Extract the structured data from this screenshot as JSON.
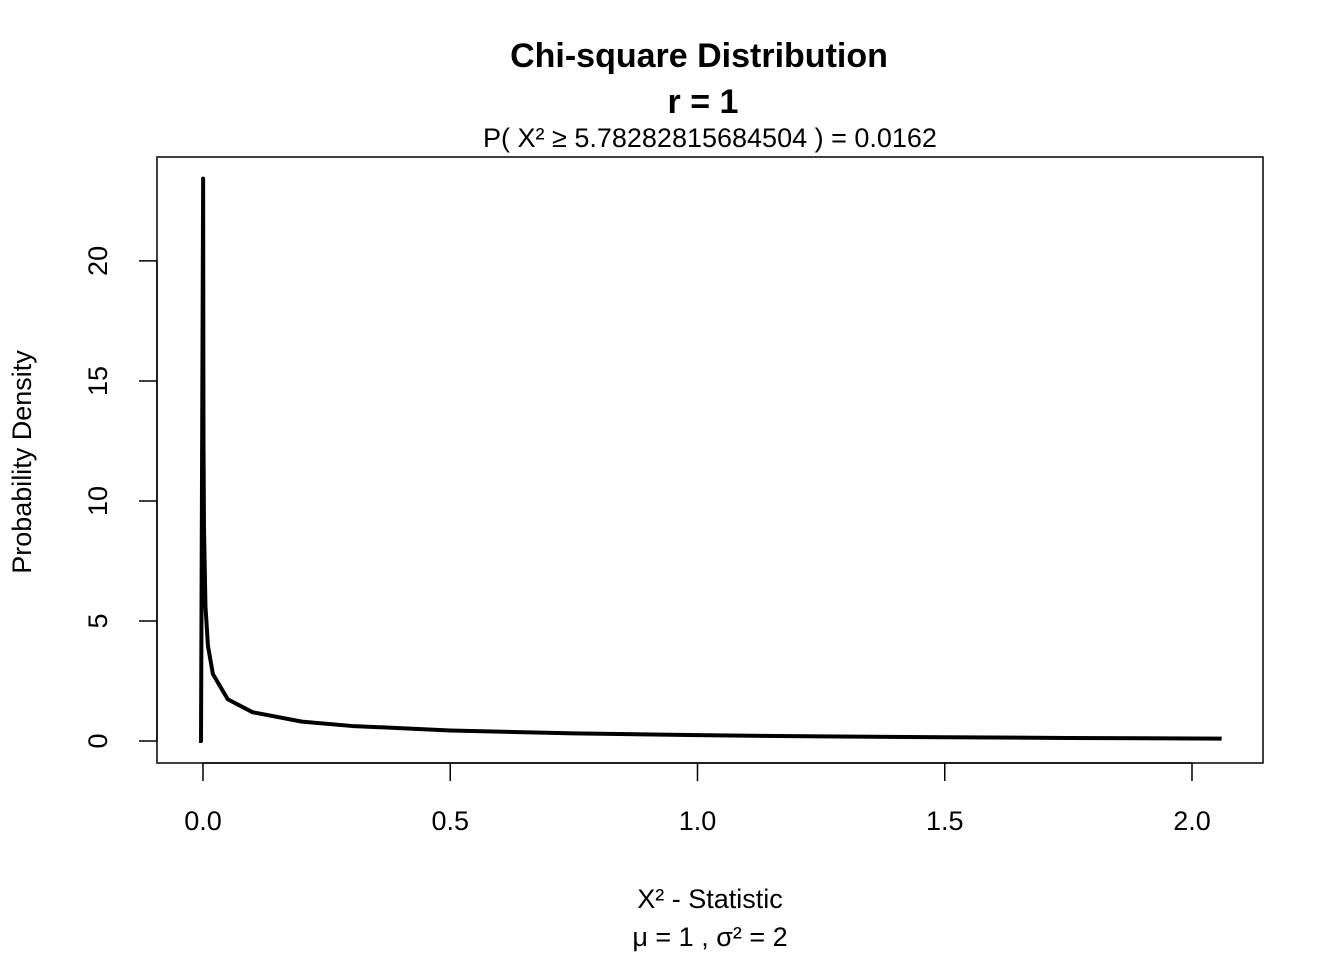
{
  "chart_data": {
    "type": "line",
    "title": "Chi-square Distribution",
    "title_line2": "r  =  1",
    "subtitle": "P(  X²  ≥  5.78282815684504  ) = 0.0162",
    "x_label": "X² - Statistic",
    "x_label_line2": "μ =  1 , σ² =  2",
    "y_label": "Probability Density",
    "x": [
      -0.008,
      -0.004,
      0.00029,
      0.001,
      0.002,
      0.005,
      0.01,
      0.02,
      0.05,
      0.1,
      0.2,
      0.3,
      0.5,
      0.75,
      1.0,
      1.25,
      1.5,
      1.75,
      2.06
    ],
    "series": [
      {
        "color": "#000000",
        "values": [
          0,
          0,
          23.43,
          12.61,
          8.92,
          5.62,
          3.97,
          2.79,
          1.74,
          1.2,
          0.807,
          0.627,
          0.439,
          0.317,
          0.242,
          0.191,
          0.154,
          0.126,
          0.099
        ]
      }
    ],
    "xlim": [
      -0.093,
      2.1436
    ],
    "ylim": [
      -0.917,
      24.33
    ],
    "xticks": [
      {
        "value": 0,
        "label": "0.0"
      },
      0.5,
      {
        "value": 1,
        "label": "1.0"
      },
      1.5,
      {
        "value": 2,
        "label": "2.0"
      }
    ],
    "yticks": [
      0,
      5,
      10,
      15,
      20
    ],
    "grid": false
  }
}
